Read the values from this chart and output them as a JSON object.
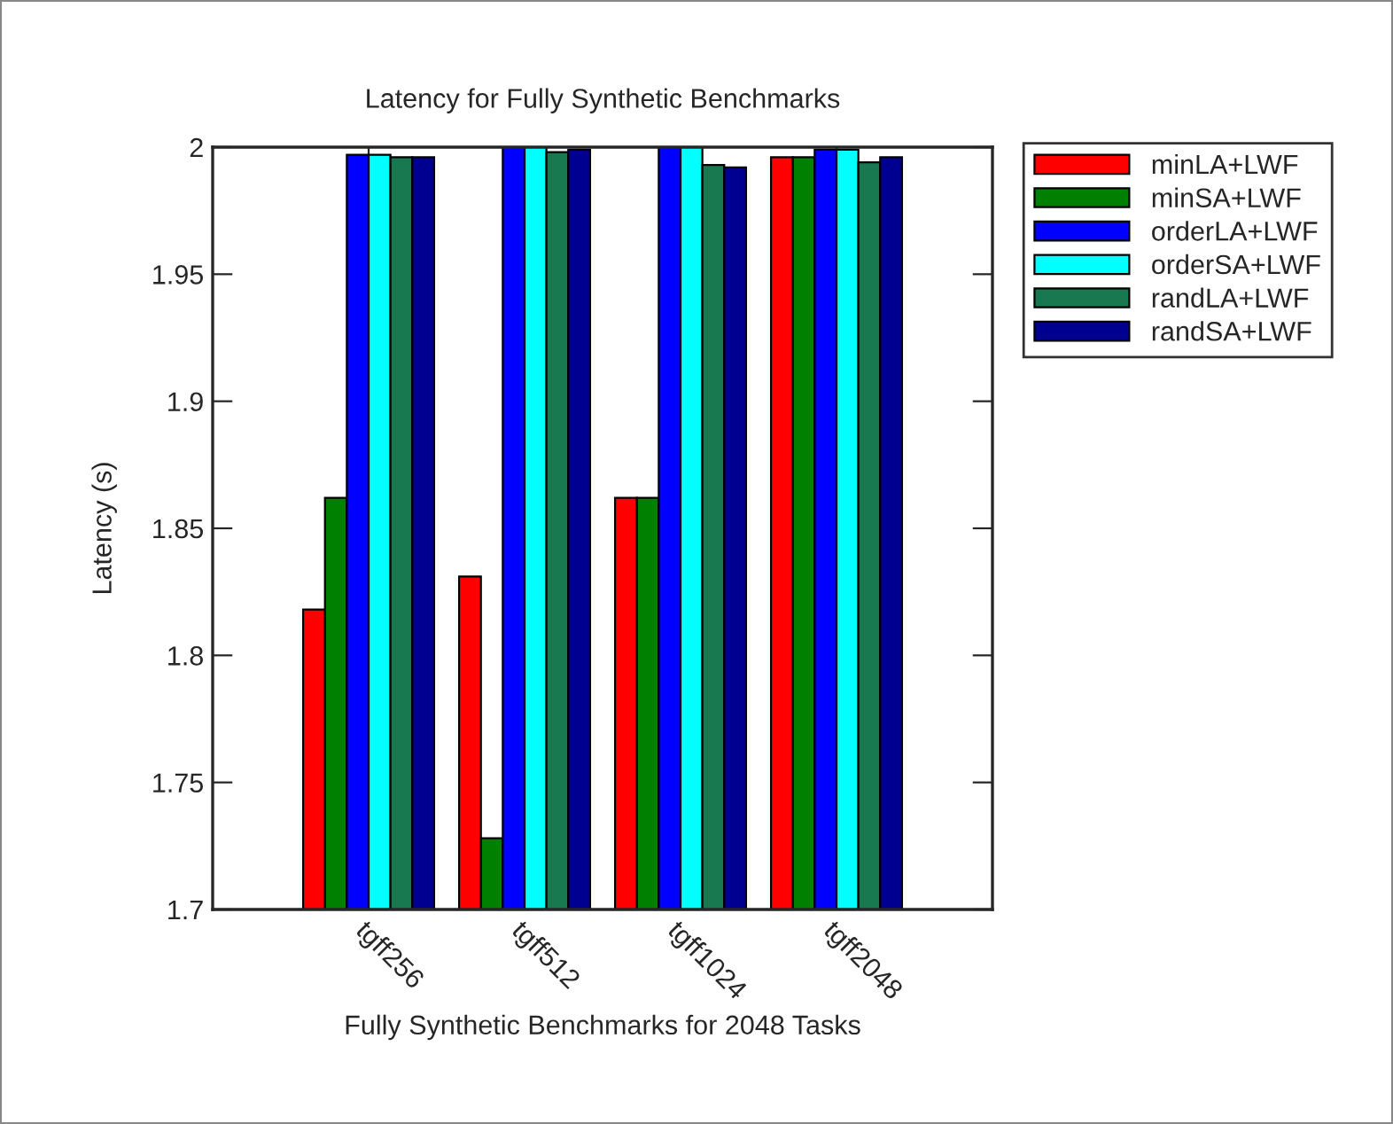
{
  "chart_data": {
    "type": "bar",
    "title": "Latency for Fully Synthetic Benchmarks",
    "xlabel": "Fully Synthetic Benchmarks for 2048 Tasks",
    "ylabel": "Latency (s)",
    "categories": [
      "tgff256",
      "tgff512",
      "tgff1024",
      "tgff2048"
    ],
    "series": [
      {
        "name": "minLA+LWF",
        "color": "#ff0000",
        "values": [
          1.818,
          1.831,
          1.862,
          1.996
        ]
      },
      {
        "name": "minSA+LWF",
        "color": "#008000",
        "values": [
          1.862,
          1.728,
          1.862,
          1.996
        ]
      },
      {
        "name": "orderLA+LWF",
        "color": "#0000ff",
        "values": [
          1.997,
          2.0,
          2.0,
          1.999
        ]
      },
      {
        "name": "orderSA+LWF",
        "color": "#00ffff",
        "values": [
          1.997,
          2.0,
          2.0,
          1.999
        ]
      },
      {
        "name": "randLA+LWF",
        "color": "#187850",
        "values": [
          1.996,
          1.998,
          1.993,
          1.994
        ]
      },
      {
        "name": "randSA+LWF",
        "color": "#000090",
        "values": [
          1.996,
          1.999,
          1.992,
          1.996
        ]
      }
    ],
    "ylim": [
      1.7,
      2
    ],
    "yticks": [
      1.7,
      1.75,
      1.8,
      1.85,
      1.9,
      1.95,
      2
    ],
    "grid": false,
    "legend": "top right"
  }
}
